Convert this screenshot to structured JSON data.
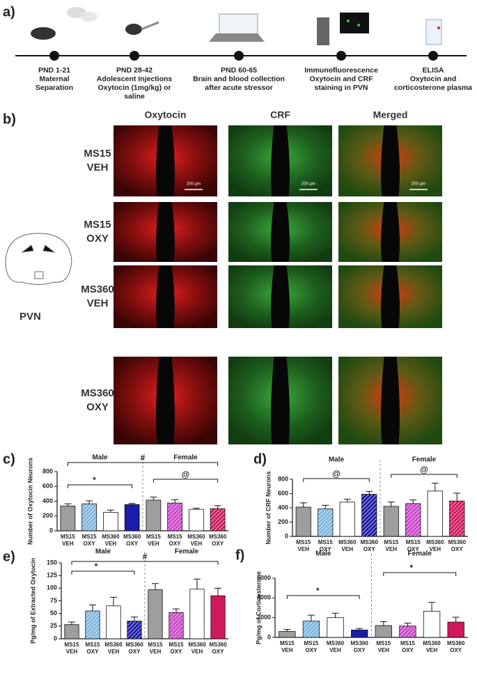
{
  "panel_labels": [
    "a)",
    "b)",
    "c)",
    "d)",
    "e)",
    "f)"
  ],
  "timeline": [
    {
      "lines": [
        "PND 1-21",
        "Maternal",
        "Separation"
      ]
    },
    {
      "lines": [
        "PND 28-42",
        "Adolescent  Injections",
        "Oxytocin (1mg/kg) or",
        "saline"
      ]
    },
    {
      "lines": [
        "PND 60-65",
        "Brain and blood collection",
        "after acute stressor"
      ]
    },
    {
      "lines": [
        "Immunofluorescence",
        "Oxytocin and CRF",
        "staining in PVN"
      ]
    },
    {
      "lines": [
        "ELISA",
        "Oxytocin and",
        "corticosterone plasma"
      ]
    }
  ],
  "micrographs": {
    "columns": [
      "Oxytocin",
      "CRF",
      "Merged"
    ],
    "rows": [
      [
        "MS15",
        "VEH"
      ],
      [
        "MS15",
        "OXY"
      ],
      [
        "MS360",
        "VEH"
      ],
      [
        "MS360",
        "OXY"
      ]
    ],
    "scale_bar": "200 µm",
    "region": "PVN"
  },
  "chart_data": [
    {
      "type": "bar",
      "y_label": "Number of Oxytocin Neurons",
      "groups": [
        "Male",
        "Female"
      ],
      "categories": [
        [
          "MS15",
          "VEH"
        ],
        [
          "MS15",
          "OXY"
        ],
        [
          "MS360",
          "VEH"
        ],
        [
          "MS360",
          "OXY"
        ],
        [
          "MS15",
          "VEH"
        ],
        [
          "MS15",
          "OXY"
        ],
        [
          "MS360",
          "VEH"
        ],
        [
          "MS360",
          "OXY"
        ]
      ],
      "values": [
        335,
        365,
        250,
        355,
        415,
        375,
        290,
        300
      ],
      "errors": [
        30,
        40,
        30,
        15,
        40,
        45,
        15,
        40
      ],
      "colors": [
        "#9e9e9e",
        "#7fb8e0",
        "#ffffff",
        "#1c1ca8",
        "#9e9e9e",
        "#c848c8",
        "#ffffff",
        "#d0185c"
      ],
      "hatched": [
        false,
        true,
        false,
        false,
        false,
        true,
        false,
        true
      ],
      "ylim": [
        0,
        800
      ],
      "yticks": [
        0,
        200,
        400,
        600,
        800
      ],
      "annotations": [
        "*",
        "#",
        "@"
      ]
    },
    {
      "type": "bar",
      "y_label": "Number of CRF Neurons",
      "groups": [
        "Male",
        "Female"
      ],
      "categories": [
        [
          "MS15",
          "VEH"
        ],
        [
          "MS15",
          "OXY"
        ],
        [
          "MS360",
          "VEH"
        ],
        [
          "MS360",
          "OXY"
        ],
        [
          "MS15",
          "VEH"
        ],
        [
          "MS15",
          "OXY"
        ],
        [
          "MS360",
          "VEH"
        ],
        [
          "MS360",
          "OXY"
        ]
      ],
      "values": [
        410,
        385,
        480,
        590,
        420,
        460,
        635,
        495
      ],
      "errors": [
        60,
        50,
        40,
        40,
        60,
        50,
        110,
        110
      ],
      "colors": [
        "#9e9e9e",
        "#7fb8e0",
        "#ffffff",
        "#1c1ca8",
        "#9e9e9e",
        "#c848c8",
        "#ffffff",
        "#d0185c"
      ],
      "hatched": [
        false,
        true,
        false,
        true,
        false,
        true,
        false,
        true
      ],
      "ylim": [
        0,
        800
      ],
      "yticks": [
        0,
        200,
        400,
        600,
        800
      ],
      "annotations": [
        "@",
        "@"
      ]
    },
    {
      "type": "bar",
      "y_label": "Pg/mg of Extracted Oxytocin",
      "groups": [
        "Male",
        "Female"
      ],
      "categories": [
        [
          "MS15",
          "VEH"
        ],
        [
          "MS15",
          "OXY"
        ],
        [
          "MS360",
          "VEH"
        ],
        [
          "MS360",
          "OXY"
        ],
        [
          "MS15",
          "VEH"
        ],
        [
          "MS15",
          "OXY"
        ],
        [
          "MS360",
          "VEH"
        ],
        [
          "MS360",
          "OXY"
        ]
      ],
      "values": [
        28,
        55,
        65,
        35,
        97,
        52,
        98,
        85
      ],
      "errors": [
        5,
        12,
        17,
        8,
        12,
        7,
        20,
        15
      ],
      "colors": [
        "#9e9e9e",
        "#7fb8e0",
        "#ffffff",
        "#1c1ca8",
        "#9e9e9e",
        "#c848c8",
        "#ffffff",
        "#d0185c"
      ],
      "hatched": [
        false,
        true,
        false,
        true,
        false,
        true,
        false,
        false
      ],
      "ylim": [
        0,
        150
      ],
      "yticks": [
        0,
        25,
        50,
        75,
        100,
        125,
        150
      ],
      "annotations": [
        "*",
        "#"
      ]
    },
    {
      "type": "bar",
      "y_label": "Pg/mg of Corticosterone",
      "groups": [
        "Male",
        "Female"
      ],
      "categories": [
        [
          "MS15",
          "VEH"
        ],
        [
          "MS15",
          "OXY"
        ],
        [
          "MS360",
          "VEH"
        ],
        [
          "MS360",
          "OXY"
        ],
        [
          "MS15",
          "VEH"
        ],
        [
          "MS15",
          "OXY"
        ],
        [
          "MS360",
          "VEH"
        ],
        [
          "MS360",
          "OXY"
        ]
      ],
      "values": [
        600,
        1650,
        2000,
        750,
        1200,
        1150,
        2650,
        1550
      ],
      "errors": [
        200,
        600,
        450,
        150,
        400,
        300,
        900,
        500
      ],
      "colors": [
        "#9e9e9e",
        "#7fb8e0",
        "#ffffff",
        "#1c1ca8",
        "#9e9e9e",
        "#c848c8",
        "#ffffff",
        "#d0185c"
      ],
      "hatched": [
        false,
        true,
        false,
        false,
        false,
        true,
        false,
        false
      ],
      "ylim": [
        0,
        6000
      ],
      "yticks": [
        0,
        2000,
        4000,
        6000
      ],
      "annotations": [
        "*",
        "*"
      ]
    }
  ]
}
